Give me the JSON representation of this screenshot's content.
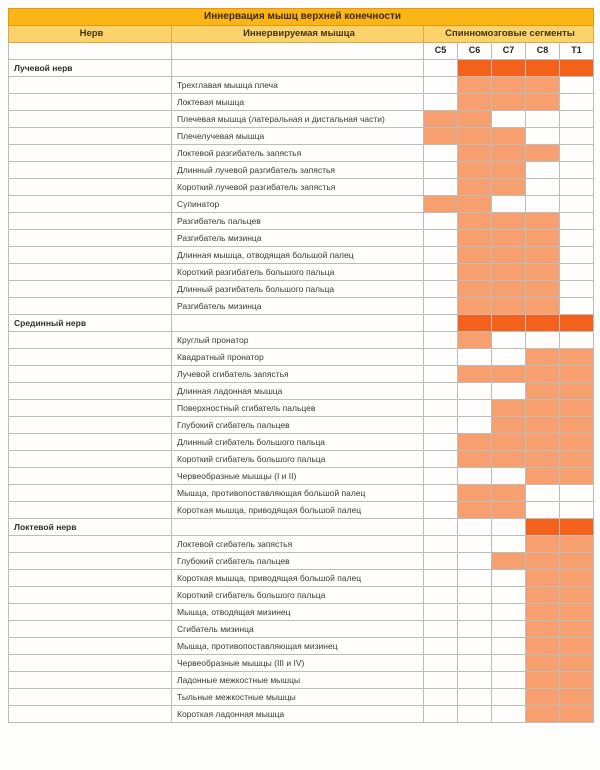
{
  "title": "Иннервация мышц верхней конечности",
  "columns": {
    "nerve": "Нерв",
    "muscle": "Иннервируемая мышца",
    "segments": "Спинномозговые сегменты"
  },
  "segment_labels": [
    "C5",
    "C6",
    "C7",
    "C8",
    "T1"
  ],
  "colors": {
    "title_bg": "#FBB616",
    "header_bg": "#FBD26B",
    "nerve_row_highlight": "#F3611B",
    "muscle_row_highlight": "#F89F70"
  },
  "sections": [
    {
      "nerve": "Лучевой нерв",
      "nerve_segments": [
        "C6",
        "C7",
        "C8",
        "T1"
      ],
      "muscles": [
        {
          "name": "Трехглавая мышца плеча",
          "segments": [
            "C6",
            "C7",
            "C8"
          ]
        },
        {
          "name": "Локтевая мышца",
          "segments": [
            "C6",
            "C7",
            "C8"
          ]
        },
        {
          "name": "Плечевая мышца (латеральная и дистальная части)",
          "segments": [
            "C5",
            "C6"
          ]
        },
        {
          "name": "Плечелучевая мышца",
          "segments": [
            "C5",
            "C6",
            "C7"
          ]
        },
        {
          "name": "Локтевой разгибатель запястья",
          "segments": [
            "C6",
            "C7",
            "C8"
          ]
        },
        {
          "name": "Длинный лучевой разгибатель запястья",
          "segments": [
            "C6",
            "C7"
          ]
        },
        {
          "name": "Короткий лучевой разгибатель запястья",
          "segments": [
            "C6",
            "C7"
          ]
        },
        {
          "name": "Супинатор",
          "segments": [
            "C5",
            "C6"
          ]
        },
        {
          "name": "Разгибатель пальцев",
          "segments": [
            "C6",
            "C7",
            "C8"
          ]
        },
        {
          "name": "Разгибатель мизинца",
          "segments": [
            "C6",
            "C7",
            "C8"
          ]
        },
        {
          "name": "Длинная мышца, отводящая большой палец",
          "segments": [
            "C6",
            "C7",
            "C8"
          ]
        },
        {
          "name": "Короткий разгибатель большого пальца",
          "segments": [
            "C6",
            "C7",
            "C8"
          ]
        },
        {
          "name": "Длинный разгибатель большого пальца",
          "segments": [
            "C6",
            "C7",
            "C8"
          ]
        },
        {
          "name": "Разгибатель мизинца",
          "segments": [
            "C6",
            "C7",
            "C8"
          ]
        }
      ]
    },
    {
      "nerve": "Срединный нерв",
      "nerve_segments": [
        "C6",
        "C7",
        "C8",
        "T1"
      ],
      "muscles": [
        {
          "name": "Круглый пронатор",
          "segments": [
            "C6"
          ]
        },
        {
          "name": "Квадратный пронатор",
          "segments": [
            "C8",
            "T1"
          ]
        },
        {
          "name": "Лучевой сгибатель запястья",
          "segments": [
            "C6",
            "C7",
            "C8",
            "T1"
          ]
        },
        {
          "name": "Длинная ладонная мышца",
          "segments": [
            "C8",
            "T1"
          ]
        },
        {
          "name": "Поверхностный сгибатель пальцев",
          "segments": [
            "C7",
            "C8",
            "T1"
          ]
        },
        {
          "name": "Глубокий сгибатель пальцев",
          "segments": [
            "C7",
            "C8",
            "T1"
          ]
        },
        {
          "name": "Длинный сгибатель большого пальца",
          "segments": [
            "C6",
            "C7",
            "C8",
            "T1"
          ]
        },
        {
          "name": "Короткий сгибатель большого пальца",
          "segments": [
            "C6",
            "C7",
            "C8",
            "T1"
          ]
        },
        {
          "name": "Червеобразные мышцы (I и II)",
          "segments": [
            "C8",
            "T1"
          ]
        },
        {
          "name": "Мышца, противопоставляющая большой палец",
          "segments": [
            "C6",
            "C7"
          ]
        },
        {
          "name": "Короткая мышца, приводящая большой палец",
          "segments": [
            "C6",
            "C7"
          ]
        }
      ]
    },
    {
      "nerve": "Локтевой нерв",
      "nerve_segments": [
        "C8",
        "T1"
      ],
      "muscles": [
        {
          "name": "Локтевой сгибатель запястья",
          "segments": [
            "C8",
            "T1"
          ]
        },
        {
          "name": "Глубокий сгибатель пальцев",
          "segments": [
            "C7",
            "C8",
            "T1"
          ]
        },
        {
          "name": "Короткая мышца, приводящая большой палец",
          "segments": [
            "C8",
            "T1"
          ]
        },
        {
          "name": "Короткий сгибатель большого пальца",
          "segments": [
            "C8",
            "T1"
          ]
        },
        {
          "name": "Мышца, отводящая мизинец",
          "segments": [
            "C8",
            "T1"
          ]
        },
        {
          "name": "Сгибатель мизинца",
          "segments": [
            "C8",
            "T1"
          ]
        },
        {
          "name": "Мышца, противопоставляющая мизинец",
          "segments": [
            "C8",
            "T1"
          ]
        },
        {
          "name": "Червеобразные мышцы (III и IV)",
          "segments": [
            "C8",
            "T1"
          ]
        },
        {
          "name": "Ладонные межкостные мышцы",
          "segments": [
            "C8",
            "T1"
          ]
        },
        {
          "name": "Тыльные межкостные мышцы",
          "segments": [
            "C8",
            "T1"
          ]
        },
        {
          "name": "Короткая ладонная мышца",
          "segments": [
            "C8",
            "T1"
          ]
        }
      ]
    }
  ]
}
